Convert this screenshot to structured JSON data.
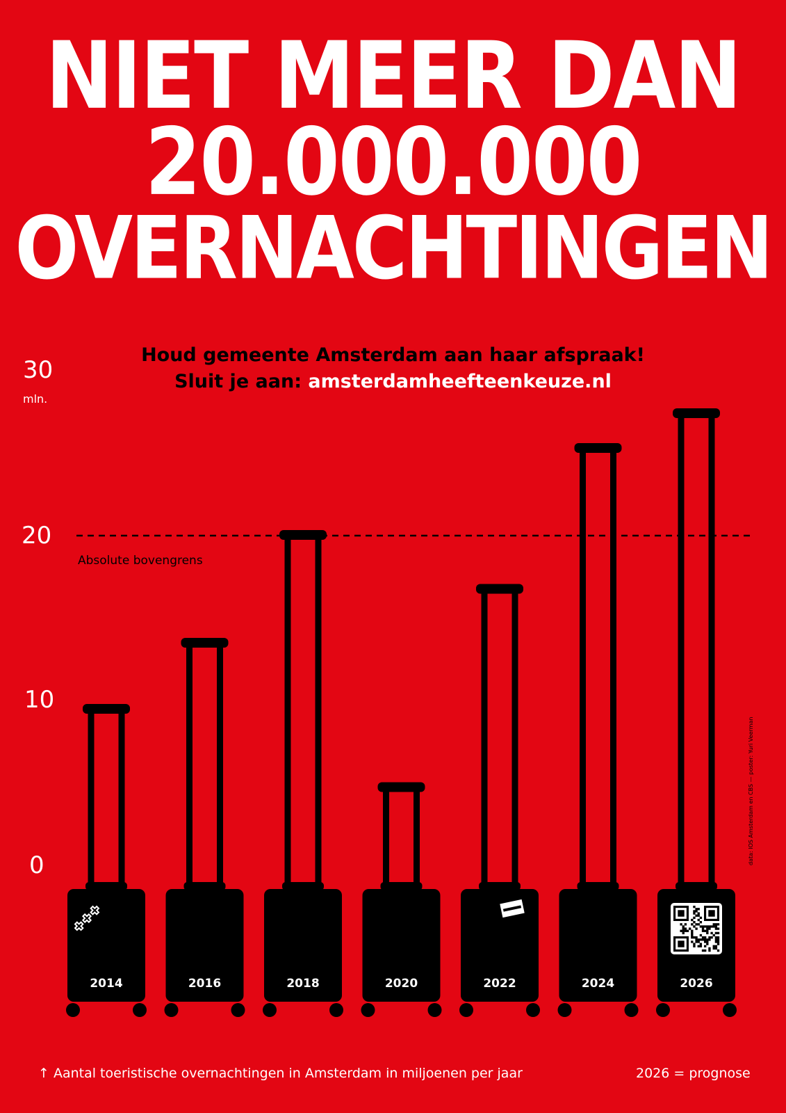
{
  "headline": {
    "line1": "NIET MEER DAN",
    "line2": "20.000.000",
    "line3": "OVERNACHTINGEN"
  },
  "subhead": {
    "line1": "Houd gemeente Amsterdam aan haar afspraak!",
    "line2_prefix": "Sluit je aan:",
    "url": "amsterdamheefteenkeuze.nl"
  },
  "credit": "data: IOS Amsterdam en CBS  —  poster: Yuri Veerman",
  "footer": {
    "caption": "↑ Aantal toeristische overnachtingen in Amsterdam in miljoenen per jaar",
    "note": "2026 = prognose"
  },
  "colors": {
    "background": "#e30613",
    "suitcase": "#000000",
    "text_light": "#ffffff"
  },
  "chart_data": {
    "type": "bar",
    "categories": [
      "2014",
      "2016",
      "2018",
      "2020",
      "2022",
      "2024",
      "2026"
    ],
    "values": [
      10,
      13.8,
      20,
      5.5,
      16.9,
      25,
      27
    ],
    "ylim": [
      0,
      30
    ],
    "yticks": [
      "0",
      "10",
      "20",
      "30"
    ],
    "yunit": "mln.",
    "reference_line": {
      "value": 20,
      "label": "Absolute bovengrens",
      "style": "dashed"
    },
    "stickers": [
      "amsterdam-crosses-sticker",
      "none",
      "none",
      "none",
      "flag-sticker",
      "none",
      "qr-code-sticker"
    ],
    "grid": false,
    "legend": "none"
  }
}
